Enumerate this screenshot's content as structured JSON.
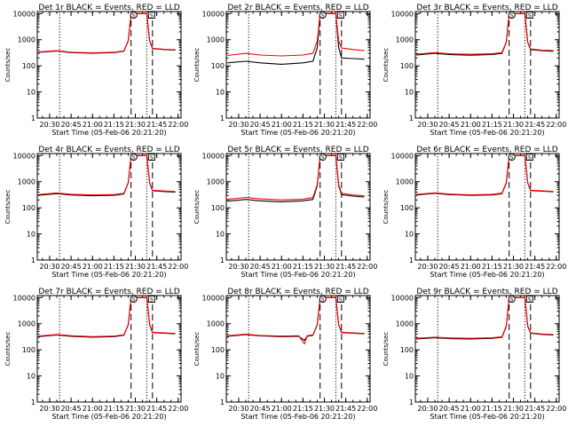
{
  "chart_data": [
    {
      "type": "line",
      "title": "Det 1r BLACK = Events, RED = LLD",
      "xlabel": "Start Time (05-Feb-06 20:21:20)",
      "ylabel": "Counts/sec",
      "x_ticks": [
        "20:30",
        "20:45",
        "21:00",
        "21:15",
        "21:30",
        "21:45",
        "22:00"
      ],
      "y_ticks": [
        "1",
        "10",
        "100",
        "1000",
        "10000"
      ],
      "y_scale": "log",
      "ylim": [
        1,
        12000
      ],
      "markers": [
        "S",
        "S"
      ],
      "series": [
        {
          "color": "#000000",
          "x": [
            "20:22",
            "20:35",
            "20:45",
            "21:00",
            "21:15",
            "21:22",
            "21:25",
            "21:27",
            "21:38",
            "21:40",
            "21:42",
            "21:50",
            "21:58"
          ],
          "values": [
            330,
            370,
            320,
            305,
            320,
            360,
            900,
            10000,
            10000,
            900,
            460,
            420,
            400
          ]
        },
        {
          "color": "#ff0000",
          "x": [
            "20:22",
            "20:35",
            "20:45",
            "21:00",
            "21:15",
            "21:22",
            "21:25",
            "21:27",
            "21:38",
            "21:40",
            "21:42",
            "21:50",
            "21:58"
          ],
          "values": [
            340,
            380,
            330,
            315,
            330,
            370,
            920,
            10200,
            10200,
            920,
            470,
            430,
            410
          ]
        }
      ]
    },
    {
      "type": "line",
      "title": "Det 2r BLACK = Events, RED = LLD",
      "xlabel": "Start Time (05-Feb-06 20:21:20)",
      "ylabel": "Counts/sec",
      "x_ticks": [
        "20:30",
        "20:45",
        "21:00",
        "21:15",
        "21:30",
        "21:45",
        "22:00"
      ],
      "y_ticks": [
        "1",
        "10",
        "100",
        "1000",
        "10000"
      ],
      "y_scale": "log",
      "ylim": [
        1,
        12000
      ],
      "markers": [
        "S",
        "S"
      ],
      "series": [
        {
          "color": "#000000",
          "x": [
            "20:22",
            "20:35",
            "20:45",
            "21:00",
            "21:15",
            "21:22",
            "21:25",
            "21:27",
            "21:38",
            "21:40",
            "21:42",
            "21:50",
            "21:58"
          ],
          "values": [
            130,
            150,
            130,
            115,
            130,
            150,
            500,
            10000,
            10000,
            500,
            200,
            190,
            180
          ]
        },
        {
          "color": "#ff0000",
          "x": [
            "20:22",
            "20:35",
            "20:45",
            "21:00",
            "21:15",
            "21:22",
            "21:25",
            "21:27",
            "21:38",
            "21:40",
            "21:42",
            "21:50",
            "21:58"
          ],
          "values": [
            250,
            300,
            260,
            240,
            260,
            300,
            900,
            10200,
            10200,
            900,
            480,
            420,
            380
          ]
        }
      ]
    },
    {
      "type": "line",
      "title": "Det 3r BLACK = Events, RED = LLD",
      "xlabel": "Start Time (05-Feb-06 20:21:20)",
      "ylabel": "Counts/sec",
      "x_ticks": [
        "20:30",
        "20:45",
        "21:00",
        "21:15",
        "21:30",
        "21:45",
        "22:00"
      ],
      "y_ticks": [
        "1",
        "10",
        "100",
        "1000",
        "10000"
      ],
      "y_scale": "log",
      "ylim": [
        1,
        12000
      ],
      "markers": [
        "S",
        "S"
      ],
      "series": [
        {
          "color": "#000000",
          "x": [
            "20:22",
            "20:35",
            "20:45",
            "21:00",
            "21:15",
            "21:22",
            "21:25",
            "21:27",
            "21:38",
            "21:40",
            "21:42",
            "21:50",
            "21:58"
          ],
          "values": [
            260,
            300,
            270,
            255,
            270,
            300,
            800,
            10000,
            10000,
            800,
            420,
            380,
            360
          ]
        },
        {
          "color": "#ff0000",
          "x": [
            "20:22",
            "20:35",
            "20:45",
            "21:00",
            "21:15",
            "21:22",
            "21:25",
            "21:27",
            "21:38",
            "21:40",
            "21:42",
            "21:50",
            "21:58"
          ],
          "values": [
            280,
            320,
            290,
            275,
            290,
            320,
            830,
            10200,
            10200,
            830,
            440,
            400,
            380
          ]
        }
      ]
    },
    {
      "type": "line",
      "title": "Det 4r BLACK = Events, RED = LLD",
      "xlabel": "Start Time (05-Feb-06 20:21:20)",
      "ylabel": "Counts/sec",
      "x_ticks": [
        "20:30",
        "20:45",
        "21:00",
        "21:15",
        "21:30",
        "21:45",
        "22:00"
      ],
      "y_ticks": [
        "1",
        "10",
        "100",
        "1000",
        "10000"
      ],
      "y_scale": "log",
      "ylim": [
        1,
        12000
      ],
      "markers": [
        "S",
        "S"
      ],
      "series": [
        {
          "color": "#000000",
          "x": [
            "20:22",
            "20:35",
            "20:45",
            "21:00",
            "21:15",
            "21:22",
            "21:25",
            "21:27",
            "21:38",
            "21:40",
            "21:42",
            "21:50",
            "21:58"
          ],
          "values": [
            300,
            350,
            310,
            290,
            300,
            340,
            900,
            10000,
            10000,
            900,
            450,
            420,
            400
          ]
        },
        {
          "color": "#ff0000",
          "x": [
            "20:22",
            "20:35",
            "20:45",
            "21:00",
            "21:15",
            "21:22",
            "21:25",
            "21:27",
            "21:38",
            "21:40",
            "21:42",
            "21:50",
            "21:58"
          ],
          "values": [
            320,
            370,
            330,
            310,
            320,
            360,
            930,
            10200,
            10200,
            930,
            470,
            440,
            420
          ]
        }
      ]
    },
    {
      "type": "line",
      "title": "Det 5r BLACK = Events, RED = LLD",
      "xlabel": "Start Time (05-Feb-06 20:21:20)",
      "ylabel": "Counts/sec",
      "x_ticks": [
        "20:30",
        "20:45",
        "21:00",
        "21:15",
        "21:30",
        "21:45",
        "22:00"
      ],
      "y_ticks": [
        "1",
        "10",
        "100",
        "1000",
        "10000"
      ],
      "y_scale": "log",
      "ylim": [
        1,
        12000
      ],
      "markers": [
        "S",
        "S"
      ],
      "series": [
        {
          "color": "#000000",
          "x": [
            "20:22",
            "20:35",
            "20:45",
            "21:00",
            "21:15",
            "21:22",
            "21:25",
            "21:27",
            "21:38",
            "21:40",
            "21:42",
            "21:50",
            "21:58"
          ],
          "values": [
            180,
            210,
            185,
            170,
            185,
            210,
            700,
            10000,
            10000,
            700,
            320,
            280,
            260
          ]
        },
        {
          "color": "#ff0000",
          "x": [
            "20:22",
            "20:35",
            "20:45",
            "21:00",
            "21:15",
            "21:22",
            "21:25",
            "21:27",
            "21:38",
            "21:40",
            "21:42",
            "21:50",
            "21:58"
          ],
          "values": [
            210,
            250,
            220,
            200,
            215,
            250,
            780,
            10200,
            10200,
            780,
            360,
            310,
            290
          ]
        }
      ]
    },
    {
      "type": "line",
      "title": "Det 6r BLACK = Events, RED = LLD",
      "xlabel": "Start Time (05-Feb-06 20:21:20)",
      "ylabel": "Counts/sec",
      "x_ticks": [
        "20:30",
        "20:45",
        "21:00",
        "21:15",
        "21:30",
        "21:45",
        "22:00"
      ],
      "y_ticks": [
        "1",
        "10",
        "100",
        "1000",
        "10000"
      ],
      "y_scale": "log",
      "ylim": [
        1,
        12000
      ],
      "markers": [
        "S",
        "S"
      ],
      "series": [
        {
          "color": "#000000",
          "x": [
            "20:22",
            "20:35",
            "20:45",
            "21:00",
            "21:15",
            "21:22",
            "21:25",
            "21:27",
            "21:38",
            "21:40",
            "21:42",
            "21:50",
            "21:58"
          ],
          "values": [
            310,
            360,
            320,
            300,
            310,
            350,
            900,
            10000,
            10000,
            900,
            460,
            430,
            410
          ]
        },
        {
          "color": "#ff0000",
          "x": [
            "20:22",
            "20:35",
            "20:45",
            "21:00",
            "21:15",
            "21:22",
            "21:25",
            "21:27",
            "21:38",
            "21:40",
            "21:42",
            "21:50",
            "21:58"
          ],
          "values": [
            325,
            375,
            335,
            315,
            325,
            365,
            930,
            10200,
            10200,
            930,
            475,
            445,
            425
          ]
        }
      ]
    },
    {
      "type": "line",
      "title": "Det 7r BLACK = Events, RED = LLD",
      "xlabel": "Start Time (05-Feb-06 20:21:20)",
      "ylabel": "Counts/sec",
      "x_ticks": [
        "20:30",
        "20:45",
        "21:00",
        "21:15",
        "21:30",
        "21:45",
        "22:00"
      ],
      "y_ticks": [
        "1",
        "10",
        "100",
        "1000",
        "10000"
      ],
      "y_scale": "log",
      "ylim": [
        1,
        12000
      ],
      "markers": [
        "S",
        "S"
      ],
      "series": [
        {
          "color": "#000000",
          "x": [
            "20:22",
            "20:35",
            "20:45",
            "21:00",
            "21:15",
            "21:22",
            "21:25",
            "21:27",
            "21:38",
            "21:40",
            "21:42",
            "21:50",
            "21:58"
          ],
          "values": [
            320,
            370,
            330,
            305,
            320,
            360,
            900,
            10000,
            10000,
            900,
            460,
            430,
            410
          ]
        },
        {
          "color": "#ff0000",
          "x": [
            "20:22",
            "20:35",
            "20:45",
            "21:00",
            "21:15",
            "21:22",
            "21:25",
            "21:27",
            "21:38",
            "21:40",
            "21:42",
            "21:50",
            "21:58"
          ],
          "values": [
            335,
            385,
            345,
            320,
            335,
            375,
            930,
            10200,
            10200,
            930,
            475,
            445,
            425
          ]
        }
      ]
    },
    {
      "type": "line",
      "title": "Det 8r BLACK = Events, RED = LLD",
      "xlabel": "Start Time (05-Feb-06 20:21:20)",
      "ylabel": "Counts/sec",
      "x_ticks": [
        "20:30",
        "20:45",
        "21:00",
        "21:15",
        "21:30",
        "21:45",
        "22:00"
      ],
      "y_ticks": [
        "1",
        "10",
        "100",
        "1000",
        "10000"
      ],
      "y_scale": "log",
      "ylim": [
        1,
        12000
      ],
      "markers": [
        "S",
        "S"
      ],
      "series": [
        {
          "color": "#000000",
          "x": [
            "20:22",
            "20:35",
            "20:45",
            "21:00",
            "21:12",
            "21:16",
            "21:18",
            "21:22",
            "21:25",
            "21:27",
            "21:38",
            "21:40",
            "21:42",
            "21:50",
            "21:58"
          ],
          "values": [
            330,
            380,
            340,
            320,
            330,
            230,
            330,
            360,
            900,
            10000,
            10000,
            900,
            460,
            430,
            410
          ]
        },
        {
          "color": "#ff0000",
          "x": [
            "20:22",
            "20:35",
            "20:45",
            "21:00",
            "21:12",
            "21:16",
            "21:18",
            "21:22",
            "21:25",
            "21:27",
            "21:38",
            "21:40",
            "21:42",
            "21:50",
            "21:58"
          ],
          "values": [
            345,
            395,
            355,
            335,
            345,
            170,
            345,
            375,
            930,
            10200,
            10200,
            930,
            475,
            445,
            425
          ]
        }
      ]
    },
    {
      "type": "line",
      "title": "Det 9r BLACK = Events, RED = LLD",
      "xlabel": "Start Time (05-Feb-06 20:21:20)",
      "ylabel": "Counts/sec",
      "x_ticks": [
        "20:30",
        "20:45",
        "21:00",
        "21:15",
        "21:30",
        "21:45",
        "22:00"
      ],
      "y_ticks": [
        "1",
        "10",
        "100",
        "1000",
        "10000"
      ],
      "y_scale": "log",
      "ylim": [
        1,
        12000
      ],
      "markers": [
        "S",
        "S"
      ],
      "series": [
        {
          "color": "#000000",
          "x": [
            "20:22",
            "20:35",
            "20:45",
            "21:00",
            "21:15",
            "21:22",
            "21:25",
            "21:27",
            "21:38",
            "21:40",
            "21:42",
            "21:50",
            "21:58"
          ],
          "values": [
            260,
            290,
            270,
            260,
            275,
            300,
            800,
            10000,
            10000,
            800,
            430,
            390,
            370
          ]
        },
        {
          "color": "#ff0000",
          "x": [
            "20:22",
            "20:35",
            "20:45",
            "21:00",
            "21:15",
            "21:22",
            "21:25",
            "21:27",
            "21:38",
            "21:40",
            "21:42",
            "21:50",
            "21:58"
          ],
          "values": [
            275,
            305,
            285,
            275,
            290,
            315,
            830,
            10200,
            10200,
            830,
            445,
            405,
            385
          ]
        }
      ]
    }
  ]
}
